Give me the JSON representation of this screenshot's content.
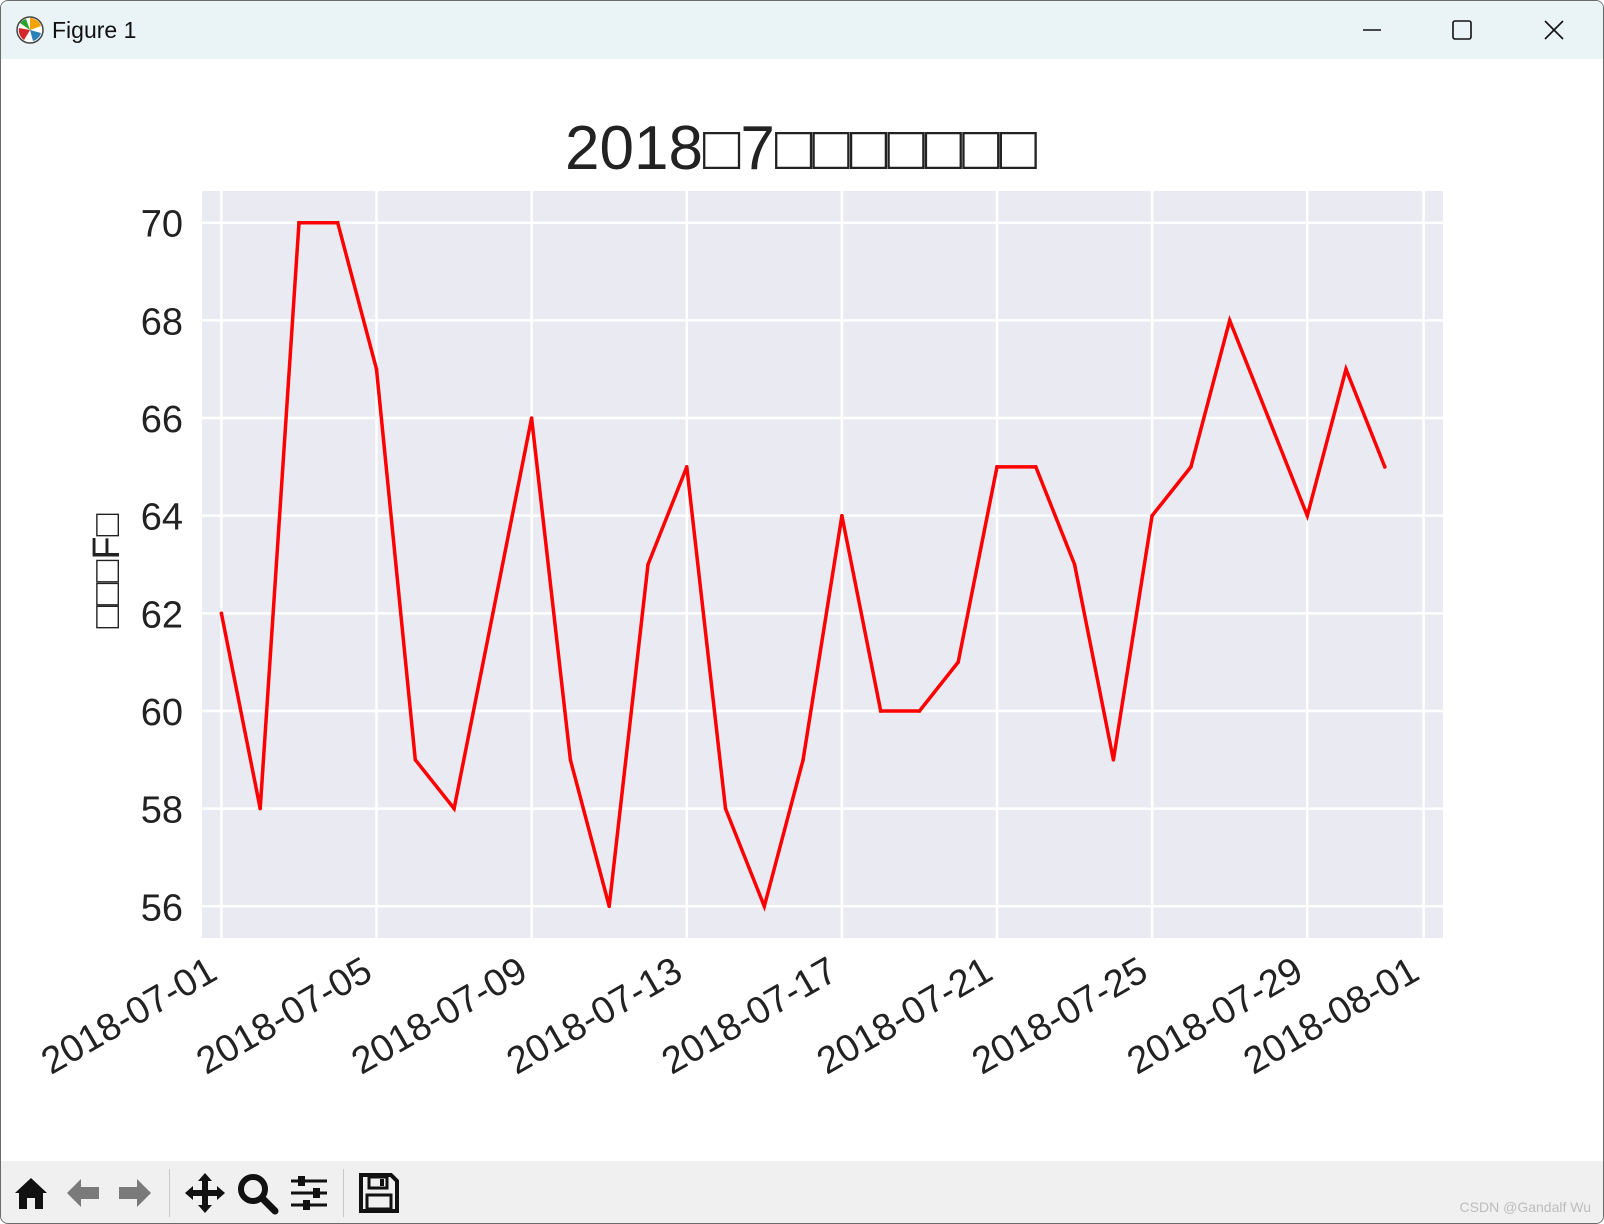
{
  "window": {
    "title": "Figure 1",
    "icon": "matplotlib-icon",
    "controls": [
      "minimize-icon",
      "maximize-icon",
      "close-icon"
    ]
  },
  "toolbar": {
    "buttons": [
      "home-icon",
      "back-arrow-icon",
      "forward-arrow-icon",
      "pan-icon",
      "zoom-icon",
      "configure-subplots-icon",
      "save-icon"
    ]
  },
  "watermark": "CSDN @Gandalf Wu",
  "colors": {
    "line": "#ff0000",
    "plot_bg": "#eaeaf2",
    "grid": "#ffffff"
  },
  "chart_data": {
    "type": "line",
    "title": "2018□7□□□□□□□",
    "xlabel": "",
    "ylabel": "□□□F□",
    "x": [
      "2018-07-01",
      "2018-07-02",
      "2018-07-03",
      "2018-07-04",
      "2018-07-05",
      "2018-07-06",
      "2018-07-07",
      "2018-07-08",
      "2018-07-09",
      "2018-07-10",
      "2018-07-11",
      "2018-07-12",
      "2018-07-13",
      "2018-07-14",
      "2018-07-15",
      "2018-07-16",
      "2018-07-17",
      "2018-07-18",
      "2018-07-19",
      "2018-07-20",
      "2018-07-21",
      "2018-07-22",
      "2018-07-23",
      "2018-07-24",
      "2018-07-25",
      "2018-07-26",
      "2018-07-27",
      "2018-07-28",
      "2018-07-29",
      "2018-07-30",
      "2018-07-31"
    ],
    "series": [
      {
        "values": [
          62,
          58,
          70,
          70,
          67,
          59,
          58,
          62,
          66,
          59,
          56,
          63,
          65,
          58,
          56,
          59,
          64,
          60,
          60,
          61,
          65,
          65,
          63,
          59,
          64,
          65,
          68,
          66,
          64,
          67,
          65
        ]
      }
    ],
    "xticks": [
      "2018-07-01",
      "2018-07-05",
      "2018-07-09",
      "2018-07-13",
      "2018-07-17",
      "2018-07-21",
      "2018-07-25",
      "2018-07-29",
      "2018-08-01"
    ],
    "yticks": [
      56,
      58,
      60,
      62,
      64,
      66,
      68,
      70
    ],
    "ylim": [
      55.35,
      70.65
    ],
    "xlim": [
      "2018-06-30T12:00",
      "2018-08-01T12:00"
    ],
    "grid": true,
    "line_color": "#ff0000"
  }
}
